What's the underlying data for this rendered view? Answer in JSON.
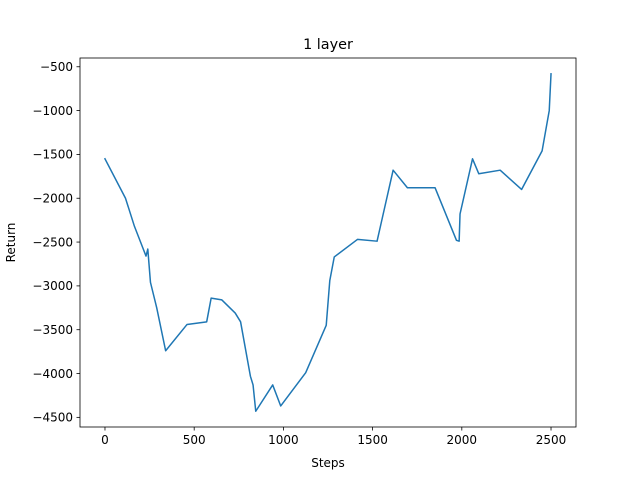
{
  "chart_data": {
    "type": "line",
    "title": "1 layer",
    "xlabel": "Steps",
    "ylabel": "Return",
    "xlim": [
      -140,
      2640
    ],
    "ylim": [
      -4610,
      -400
    ],
    "xticks": [
      0,
      500,
      1000,
      1500,
      2000,
      2500
    ],
    "yticks": [
      -4500,
      -4000,
      -3500,
      -3000,
      -2500,
      -2000,
      -1500,
      -1000,
      -500
    ],
    "grid": false,
    "series": [
      {
        "color": "#1f77b4",
        "x": [
          0,
          115,
          165,
          230,
          240,
          255,
          290,
          340,
          460,
          570,
          595,
          655,
          730,
          760,
          815,
          830,
          845,
          940,
          985,
          1125,
          1240,
          1260,
          1285,
          1415,
          1525,
          1615,
          1695,
          1850,
          1970,
          1985,
          1990,
          2060,
          2095,
          2215,
          2335,
          2450,
          2490,
          2500
        ],
        "y": [
          -1550,
          -2000,
          -2320,
          -2660,
          -2580,
          -2960,
          -3250,
          -3740,
          -3440,
          -3410,
          -3140,
          -3160,
          -3310,
          -3410,
          -4030,
          -4130,
          -4430,
          -4130,
          -4370,
          -3990,
          -3450,
          -2940,
          -2670,
          -2470,
          -2490,
          -1680,
          -1880,
          -1880,
          -2480,
          -2490,
          -2180,
          -1550,
          -1720,
          -1680,
          -1900,
          -1460,
          -1000,
          -580
        ]
      }
    ]
  }
}
